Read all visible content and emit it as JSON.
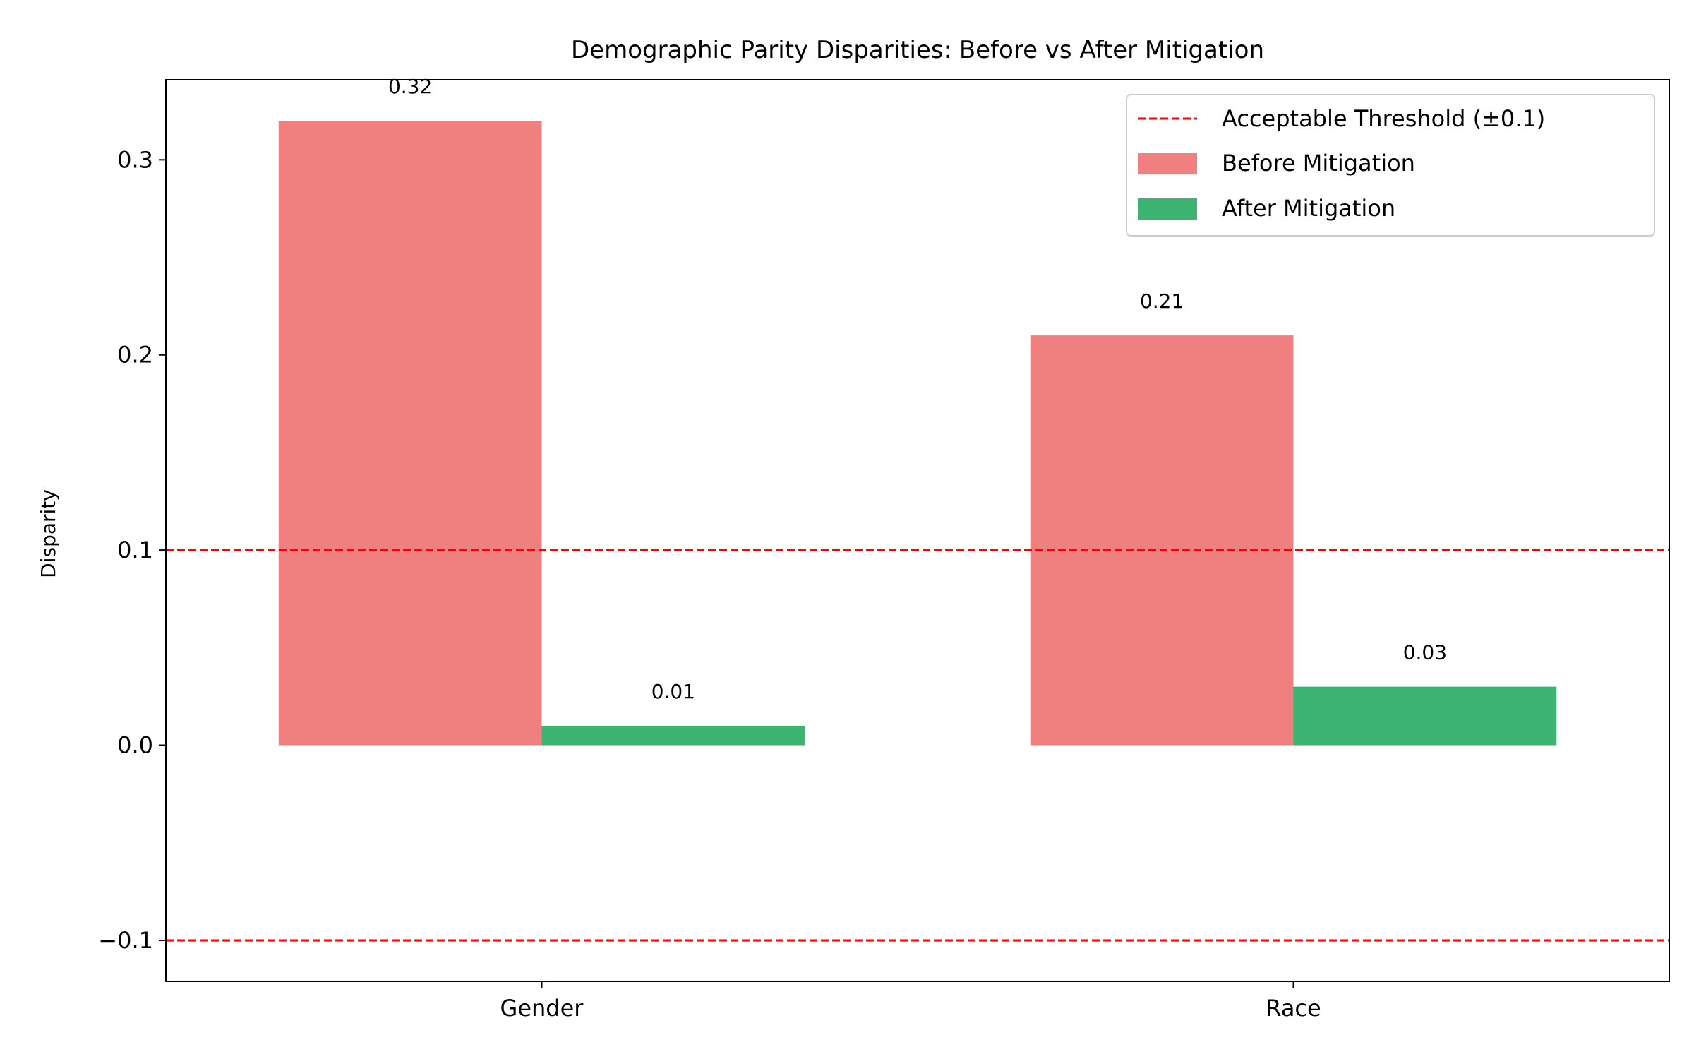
{
  "chart_data": {
    "type": "bar",
    "title": "Demographic Parity Disparities: Before vs After Mitigation",
    "xlabel": "",
    "ylabel": "Disparity",
    "categories": [
      "Gender",
      "Race"
    ],
    "series": [
      {
        "name": "Before Mitigation",
        "values": [
          0.32,
          0.21
        ],
        "color": "#f08080",
        "labels": [
          "0.32",
          "0.21"
        ]
      },
      {
        "name": "After Mitigation",
        "values": [
          0.01,
          0.03
        ],
        "color": "#3cb371",
        "labels": [
          "0.01",
          "0.03"
        ]
      }
    ],
    "ylim": [
      -0.121,
      0.341
    ],
    "yticks": [
      -0.1,
      0.0,
      0.1,
      0.2,
      0.3
    ],
    "ytick_labels": [
      "−0.1",
      "0.0",
      "0.1",
      "0.2",
      "0.3"
    ],
    "threshold": {
      "name": "Acceptable Threshold (±0.1)",
      "values": [
        0.1,
        -0.1
      ],
      "color": "#ff0000",
      "style": "dashed"
    },
    "legend": {
      "placement": "upper-right"
    },
    "grid": false
  }
}
